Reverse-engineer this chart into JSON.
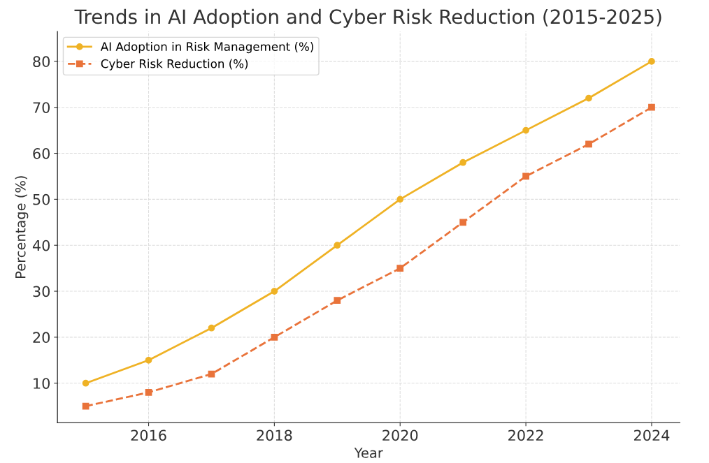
{
  "chart_data": {
    "type": "line",
    "title": "Trends in AI Adoption and Cyber Risk Reduction (2015-2025)",
    "xlabel": "Year",
    "ylabel": "Percentage (%)",
    "x": [
      2015,
      2016,
      2017,
      2018,
      2019,
      2020,
      2021,
      2022,
      2023,
      2024
    ],
    "series": [
      {
        "name": "AI Adoption in Risk Management (%)",
        "color": "#efb225",
        "marker": "circle",
        "line_style": "solid",
        "values": [
          10,
          15,
          22,
          30,
          40,
          50,
          58,
          65,
          72,
          80
        ]
      },
      {
        "name": "Cyber Risk Reduction (%)",
        "color": "#e9733a",
        "marker": "square",
        "line_style": "dashed",
        "values": [
          5,
          8,
          12,
          20,
          28,
          35,
          45,
          55,
          62,
          70
        ]
      }
    ],
    "xlim": [
      2014.55,
      2024.45
    ],
    "xticks": [
      2016,
      2018,
      2020,
      2022,
      2024
    ],
    "ylim": [
      1.4,
      86.5
    ],
    "yticks": [
      10,
      20,
      30,
      40,
      50,
      60,
      70,
      80
    ],
    "grid": true,
    "legend": "top left"
  }
}
